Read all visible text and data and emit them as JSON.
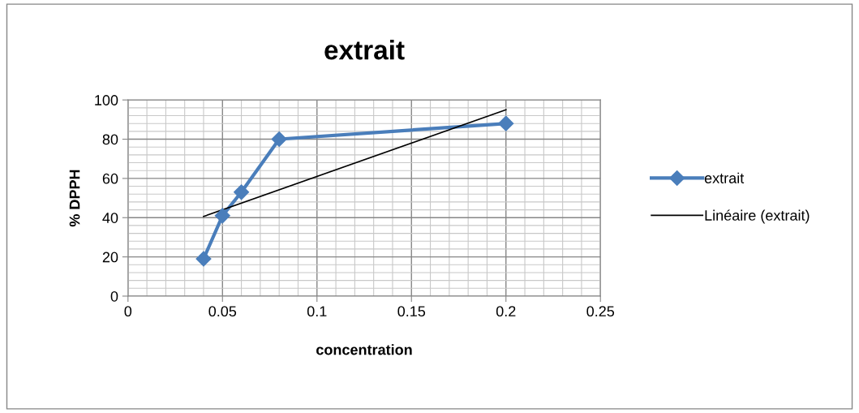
{
  "chart_data": {
    "type": "line",
    "title": "extrait",
    "xlabel": "concentration",
    "ylabel": "% DPPH",
    "xlim": [
      0,
      0.25
    ],
    "xticks": [
      0,
      0.05,
      0.1,
      0.15,
      0.2,
      0.25
    ],
    "ylim": [
      0,
      100
    ],
    "yticks": [
      0,
      20,
      40,
      60,
      80,
      100
    ],
    "grid": true,
    "legend": "right",
    "line_style": "solid",
    "series": [
      {
        "name": "extrait",
        "color": "#4a7ebb",
        "marker": "diamond",
        "x": [
          0.04,
          0.05,
          0.06,
          0.08,
          0.2
        ],
        "values": [
          19,
          41,
          53,
          80,
          88
        ]
      },
      {
        "name": "Linéaire (extrait)",
        "color": "#000000",
        "marker": "none",
        "x": [
          0.04,
          0.2
        ],
        "values": [
          40.6,
          95
        ]
      }
    ]
  }
}
